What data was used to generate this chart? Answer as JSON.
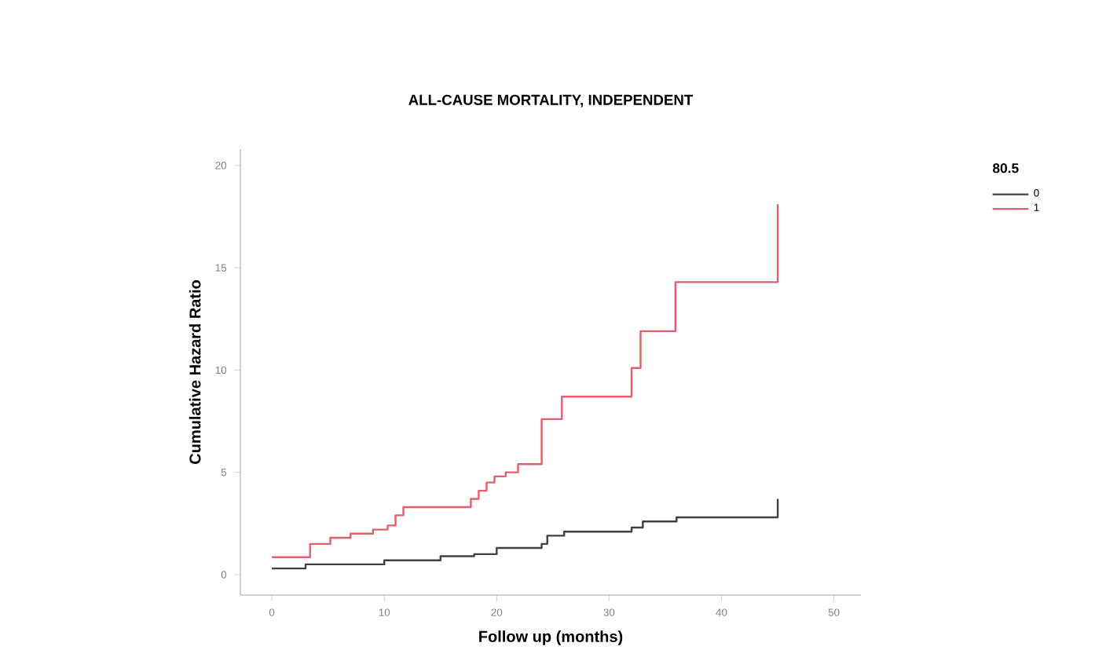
{
  "chart_data": {
    "type": "step",
    "title": "ALL-CAUSE MORTALITY, INDEPENDENT",
    "xlabel": "Follow up (months)",
    "ylabel": "Cumulative Hazard Ratio",
    "legend_title": "80.5",
    "series": [
      {
        "name": "0",
        "color": "#404040",
        "x": [
          0,
          3,
          10,
          15,
          18,
          20,
          24,
          24.5,
          26,
          32,
          33,
          36,
          45
        ],
        "values": [
          0.3,
          0.5,
          0.7,
          0.9,
          1.0,
          1.3,
          1.5,
          1.9,
          2.1,
          2.3,
          2.6,
          2.8,
          3.7
        ]
      },
      {
        "name": "1",
        "color": "#e06070",
        "x": [
          0,
          3.4,
          5.2,
          7,
          9,
          10.3,
          11,
          11.7,
          17.7,
          18.4,
          19.1,
          19.8,
          20.8,
          21.9,
          24,
          25.8,
          32,
          32.8,
          35.9,
          45
        ],
        "values": [
          0.85,
          1.5,
          1.8,
          2.0,
          2.2,
          2.4,
          2.9,
          3.3,
          3.7,
          4.1,
          4.5,
          4.8,
          5.0,
          5.4,
          7.6,
          8.7,
          10.1,
          11.9,
          14.3,
          18.1
        ]
      }
    ],
    "xlim": [
      -2.8,
      52.4
    ],
    "ylim": [
      -1,
      20.8
    ],
    "xticks": [
      0,
      10,
      20,
      30,
      40,
      50
    ],
    "yticks": [
      0,
      5,
      10,
      15,
      20
    ],
    "legend": "top right"
  }
}
